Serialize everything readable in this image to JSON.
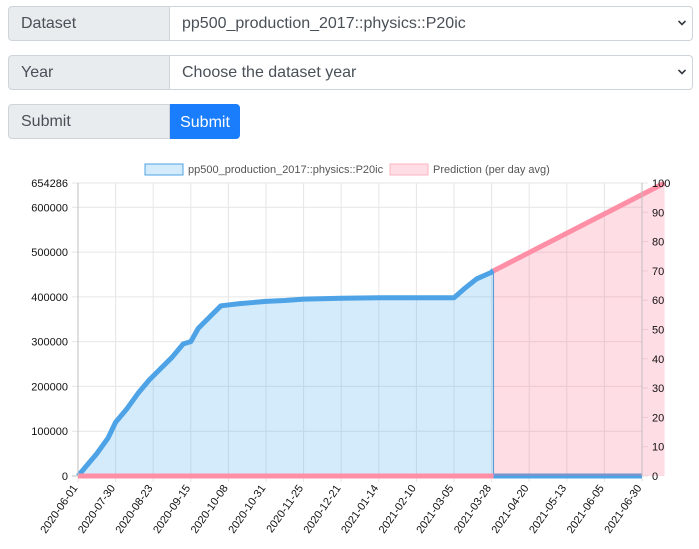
{
  "form": {
    "dataset_label": "Dataset",
    "dataset_value": "pp500_production_2017::physics::P20ic",
    "year_label": "Year",
    "year_placeholder": "Choose the dataset year",
    "submit_label": "Submit",
    "submit_button": "Submit",
    "accent_color": "#1a7dfc"
  },
  "chart_data": {
    "type": "area",
    "legend": [
      "pp500_production_2017::physics::P20ic",
      "Prediction (per day avg)"
    ],
    "colors": {
      "actual": "#4da3e6",
      "actual_fill": "rgba(54,162,235,0.22)",
      "prediction": "#ff8fa6",
      "prediction_fill": "rgba(255,99,132,0.22)"
    },
    "x_ticks": [
      "2020-06-01",
      "2020-07-30",
      "2020-08-23",
      "2020-09-15",
      "2020-10-08",
      "2020-10-31",
      "2020-11-25",
      "2020-12-21",
      "2021-01-14",
      "2021-02-10",
      "2021-03-05",
      "2021-03-28",
      "2021-04-20",
      "2021-05-13",
      "2021-06-05",
      "2021-06-30"
    ],
    "y_left": {
      "ticks": [
        0,
        100000,
        200000,
        300000,
        400000,
        500000,
        600000,
        654286
      ],
      "max": 654286
    },
    "y_right": {
      "ticks": [
        0,
        10,
        20,
        30,
        40,
        50,
        60,
        70,
        80,
        90,
        100
      ],
      "max": 100
    },
    "actual_series": {
      "x": [
        0,
        0.2,
        0.5,
        0.8,
        1.0,
        1.3,
        1.6,
        1.9,
        2.2,
        2.5,
        2.8,
        3.0,
        3.2,
        3.5,
        3.8,
        4.0,
        4.3,
        4.6,
        5.0,
        5.5,
        6.0,
        7.0,
        8.0,
        9.0,
        10.0,
        10.3,
        10.6,
        11.0,
        11.05
      ],
      "y": [
        0,
        20000,
        50000,
        85000,
        120000,
        150000,
        185000,
        215000,
        240000,
        265000,
        295000,
        300000,
        330000,
        355000,
        380000,
        382000,
        385000,
        387000,
        390000,
        392000,
        395000,
        397000,
        398000,
        398000,
        398000,
        420000,
        440000,
        455000,
        460000
      ]
    },
    "prediction_series": {
      "x": [
        11.05,
        15.6
      ],
      "y_right": [
        70,
        100
      ]
    }
  }
}
